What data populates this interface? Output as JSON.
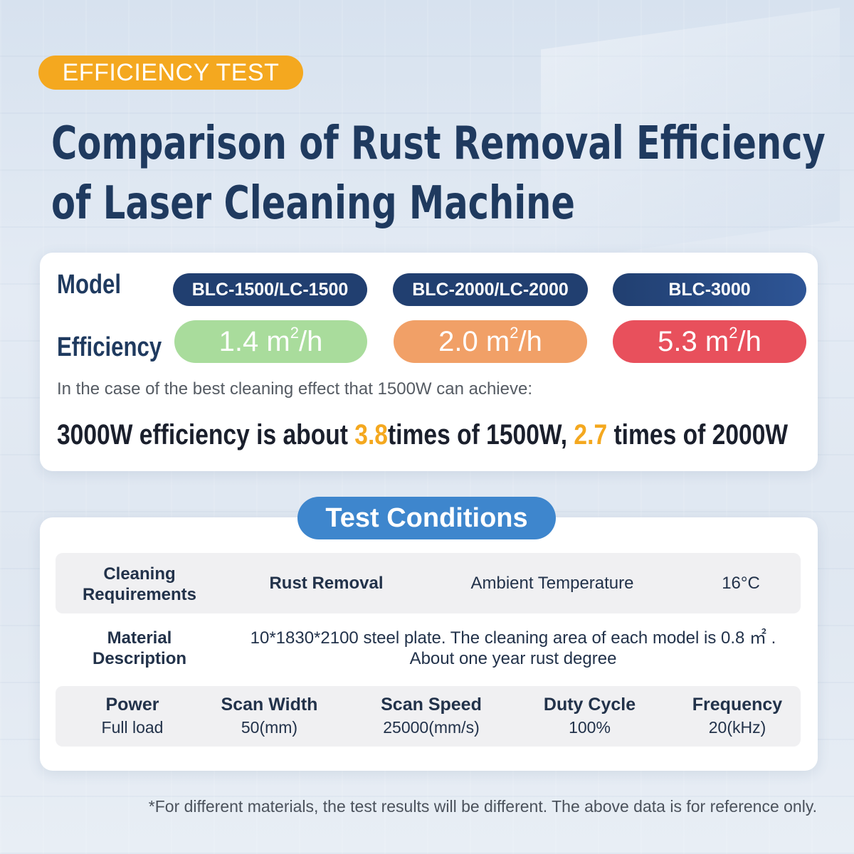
{
  "tag_label": "EFFICIENCY TEST",
  "title_line1": "Comparison of Rust Removal Efficiency",
  "title_line2": "of Laser Cleaning Machine",
  "comparison": {
    "model_label": "Model",
    "efficiency_label": "Efficiency",
    "models": [
      "BLC-1500/LC-1500",
      "BLC-2000/LC-2000",
      "BLC-3000"
    ],
    "efficiency_values": [
      "1.4 m",
      "2.0 m",
      "5.3 m"
    ],
    "efficiency_sup": "2",
    "efficiency_unit_tail": "/h",
    "note": "In the case of the best cleaning effect that 1500W can achieve:",
    "conclusion_part1": "3000W efficiency is about ",
    "conclusion_hl1": "3.8",
    "conclusion_part2": "times of 1500W, ",
    "conclusion_hl2": "2.7",
    "conclusion_part3": " times of 2000W",
    "colors": {
      "model_pill": "#213f70",
      "eff_1500": "#a9dc9c",
      "eff_2000": "#f1a067",
      "eff_3000": "#e8505c",
      "highlight": "#f4a81f"
    }
  },
  "test_conditions": {
    "title": "Test Conditions",
    "cleaning_req_label": "Cleaning Requirements",
    "cleaning_req_value": "Rust Removal",
    "ambient_label": "Ambient Temperature",
    "ambient_value": "16°C",
    "material_label": "Material Description",
    "material_line1": "10*1830*2100 steel plate. The cleaning area of each model is 0.8 ㎡ .",
    "material_line2": "About one year rust degree",
    "specs": [
      {
        "label": "Power",
        "value": "Full load"
      },
      {
        "label": "Scan Width",
        "value": "50(mm)"
      },
      {
        "label": "Scan Speed",
        "value": "25000(mm/s)"
      },
      {
        "label": "Duty Cycle",
        "value": "100%"
      },
      {
        "label": "Frequency",
        "value": "20(kHz)"
      }
    ]
  },
  "footnote": "*For different materials, the test results will be different. The above data is for reference only."
}
